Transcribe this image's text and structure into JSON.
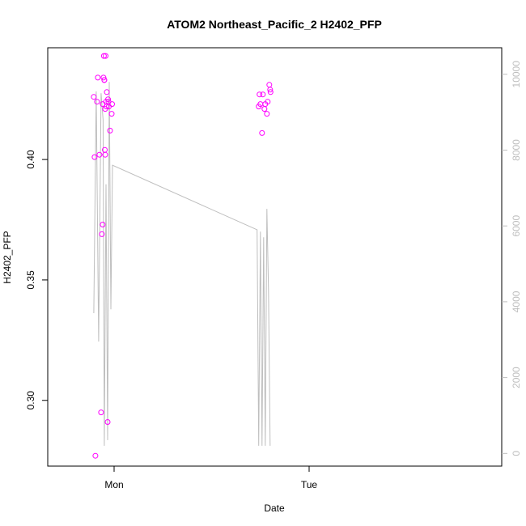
{
  "chart_data": {
    "type": "scatter",
    "title": "ATOM2 Northeast_Pacific_2 H2402_PFP",
    "xlabel": "Date",
    "ylabel": "H2402_PFP",
    "x_ticks": [
      "Mon",
      "Tue"
    ],
    "y_ticks": [
      "0.30",
      "0.35",
      "0.40"
    ],
    "y2_ticks": [
      "0",
      "2000",
      "4000",
      "6000",
      "8000",
      "10000"
    ],
    "ylim": [
      0.2727,
      0.4464
    ],
    "y2lim": [
      -335,
      10700
    ],
    "grid": false,
    "legend": "none",
    "colors": {
      "points": "#ff00ff",
      "line": "#bebebe",
      "axis": "#000000",
      "right_axis": "#bebebe"
    },
    "series": [
      {
        "values_units": "H2402_PFP",
        "x_hours": [
          -2.5,
          -2.4,
          -2.3,
          -2.1,
          -2.0,
          -1.8,
          -1.6,
          -1.5,
          -1.4,
          -1.4,
          -1.3,
          -1.25,
          -1.2,
          -1.2,
          -1.15,
          -1.1,
          -1.1,
          -1.05,
          -1.0,
          -0.95,
          -0.9,
          -0.8,
          -0.75,
          -0.7,
          -0.65,
          -0.5,
          -0.3,
          -0.25,
          17.8,
          17.9,
          18.0,
          18.2,
          18.3,
          18.5,
          18.6,
          18.8,
          18.9,
          19.1,
          19.2,
          19.25
        ],
        "values": [
          0.426,
          0.401,
          0.277,
          0.424,
          0.434,
          0.402,
          0.295,
          0.369,
          0.373,
          0.423,
          0.434,
          0.443,
          0.433,
          0.433,
          0.404,
          0.402,
          0.421,
          0.443,
          0.424,
          0.422,
          0.428,
          0.291,
          0.425,
          0.424,
          0.422,
          0.412,
          0.419,
          0.423,
          0.422,
          0.427,
          0.423,
          0.411,
          0.427,
          0.421,
          0.423,
          0.419,
          0.424,
          0.431,
          0.429,
          0.428
        ]
      },
      {
        "axis": "right",
        "x_hours": [
          -2.5,
          -2.2,
          -1.9,
          -1.6,
          -1.35,
          -1.2,
          -1.0,
          -0.8,
          -0.6,
          -0.4,
          -0.2,
          17.6,
          17.8,
          18.0,
          18.2,
          18.4,
          18.6,
          18.8,
          19.0,
          19.2
        ],
        "values": [
          3700,
          9550,
          2950,
          9500,
          8800,
          200,
          7100,
          350,
          9800,
          3800,
          7600,
          5900,
          200,
          5850,
          200,
          5700,
          200,
          6450,
          4300,
          200
        ]
      }
    ]
  }
}
